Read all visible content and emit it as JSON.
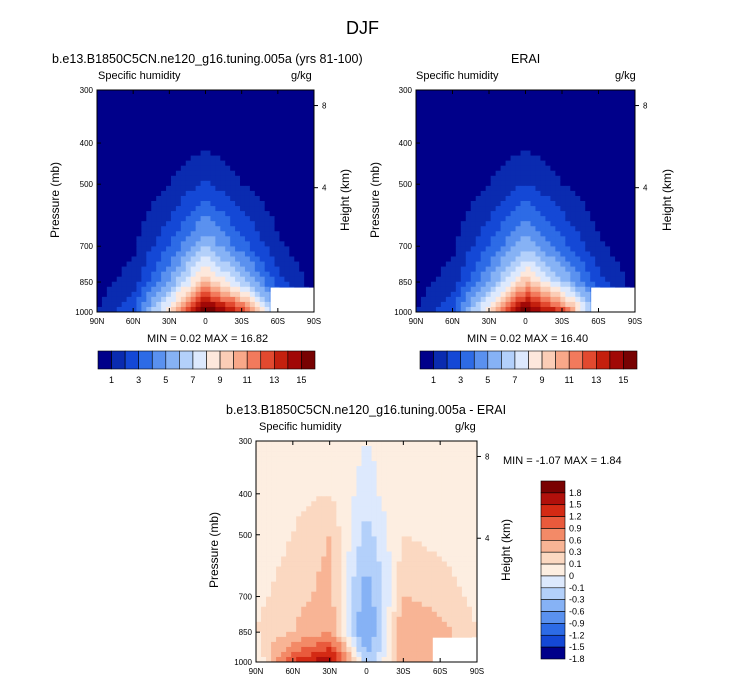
{
  "figure": {
    "title": "DJF"
  },
  "colors": {
    "seq": [
      "#00008a",
      "#0a2bb0",
      "#1448d6",
      "#2d6be6",
      "#5a91ef",
      "#86b2f5",
      "#b3d0fa",
      "#dde9fd",
      "#fde8dc",
      "#fbcdb6",
      "#f8a889",
      "#f27a5c",
      "#e2492f",
      "#c4200e",
      "#a10806",
      "#780202"
    ],
    "div": [
      "#00008a",
      "#1448d6",
      "#2d6be6",
      "#5a91ef",
      "#86b2f5",
      "#b3d0fa",
      "#dde9fd",
      "#fdeee1",
      "#fbd8c1",
      "#f8b495",
      "#f38a67",
      "#e95a3c",
      "#d42a14",
      "#b1100b",
      "#7a0202"
    ]
  },
  "chart_data": [
    {
      "type": "heatmap",
      "panel": "left",
      "title": "b.e13.B1850C5CN.ne120_g16.tuning.005a (yrs 81-100)",
      "left_label": "Specific humidity",
      "right_label": "g/kg",
      "ylabel": "Pressure (mb)",
      "ylabel_right": "Height (km)",
      "x_ticks": [
        "90N",
        "60N",
        "30N",
        "0",
        "30S",
        "60S",
        "90S"
      ],
      "y_ticks": [
        "300",
        "400",
        "500",
        "700",
        "850",
        "1000"
      ],
      "y_ticks_right": [
        "8",
        "4"
      ],
      "stats": "MIN =  0.02  MAX =  16.82",
      "colorbar_labels": [
        "1",
        "3",
        "5",
        "7",
        "9",
        "11",
        "13",
        "15"
      ],
      "x": [
        90,
        60,
        30,
        0,
        -30,
        -60,
        -90
      ],
      "pressure": [
        300,
        400,
        500,
        700,
        850,
        1000
      ],
      "values": [
        [
          0.02,
          0.02,
          0.1,
          0.3,
          0.1,
          0.02,
          0.02
        ],
        [
          0.02,
          0.05,
          0.3,
          0.8,
          0.3,
          0.05,
          0.02
        ],
        [
          0.05,
          0.2,
          1.0,
          2.2,
          1.0,
          0.3,
          0.05
        ],
        [
          0.2,
          0.8,
          3.0,
          6.0,
          3.5,
          1.2,
          0.2
        ],
        [
          0.5,
          1.5,
          5.0,
          10.0,
          6.5,
          2.5,
          0.5
        ],
        [
          1.0,
          3.0,
          9.0,
          16.5,
          13.0,
          5.0,
          1.0
        ]
      ]
    },
    {
      "type": "heatmap",
      "panel": "right",
      "title": "ERAI",
      "left_label": "Specific humidity",
      "right_label": "g/kg",
      "ylabel": "Pressure (mb)",
      "ylabel_right": "Height (km)",
      "x_ticks": [
        "90N",
        "60N",
        "30N",
        "0",
        "30S",
        "60S",
        "90S"
      ],
      "y_ticks": [
        "300",
        "400",
        "500",
        "700",
        "850",
        "1000"
      ],
      "y_ticks_right": [
        "8",
        "4"
      ],
      "stats": "MIN =  0.02  MAX =  16.40",
      "colorbar_labels": [
        "1",
        "3",
        "5",
        "7",
        "9",
        "11",
        "13",
        "15"
      ],
      "x": [
        90,
        60,
        30,
        0,
        -30,
        -60,
        -90
      ],
      "pressure": [
        300,
        400,
        500,
        700,
        850,
        1000
      ],
      "values": [
        [
          0.02,
          0.02,
          0.1,
          0.3,
          0.1,
          0.02,
          0.02
        ],
        [
          0.02,
          0.05,
          0.3,
          0.8,
          0.3,
          0.05,
          0.02
        ],
        [
          0.05,
          0.2,
          1.0,
          2.1,
          1.0,
          0.3,
          0.05
        ],
        [
          0.2,
          0.8,
          3.0,
          5.8,
          3.4,
          1.2,
          0.2
        ],
        [
          0.5,
          1.5,
          5.0,
          9.8,
          6.3,
          2.5,
          0.5
        ],
        [
          1.0,
          3.0,
          9.0,
          16.2,
          12.8,
          5.0,
          1.0
        ]
      ]
    },
    {
      "type": "heatmap",
      "panel": "difference",
      "title": "b.e13.B1850C5CN.ne120_g16.tuning.005a - ERAI",
      "left_label": "Specific humidity",
      "right_label": "g/kg",
      "ylabel": "Pressure (mb)",
      "ylabel_right": "Height (km)",
      "x_ticks": [
        "90N",
        "60N",
        "30N",
        "0",
        "30S",
        "60S",
        "90S"
      ],
      "y_ticks": [
        "300",
        "400",
        "500",
        "700",
        "850",
        "1000"
      ],
      "y_ticks_right": [
        "8",
        "4"
      ],
      "stats": "MIN = -1.07  MAX =  1.84",
      "colorbar_labels": [
        "1.8",
        "1.5",
        "1.2",
        "0.9",
        "0.6",
        "0.3",
        "0.1",
        "0",
        "-0.1",
        "-0.3",
        "-0.6",
        "-0.9",
        "-1.2",
        "-1.5",
        "-1.8"
      ],
      "x": [
        90,
        60,
        30,
        0,
        -30,
        -60,
        -90
      ],
      "pressure": [
        300,
        400,
        500,
        700,
        850,
        1000
      ],
      "values": [
        [
          0.0,
          0.0,
          0.05,
          -0.1,
          0.0,
          0.0,
          -0.05
        ],
        [
          0.0,
          0.05,
          0.1,
          -0.2,
          0.1,
          0.0,
          0.0
        ],
        [
          0.0,
          0.1,
          0.3,
          -0.4,
          0.1,
          0.05,
          0.0
        ],
        [
          0.05,
          0.2,
          0.4,
          -0.8,
          0.3,
          0.2,
          0.05
        ],
        [
          0.1,
          0.3,
          0.6,
          -1.0,
          0.6,
          0.4,
          0.1
        ],
        [
          -0.2,
          1.2,
          1.8,
          -0.5,
          0.4,
          0.3,
          0.0
        ]
      ]
    }
  ]
}
